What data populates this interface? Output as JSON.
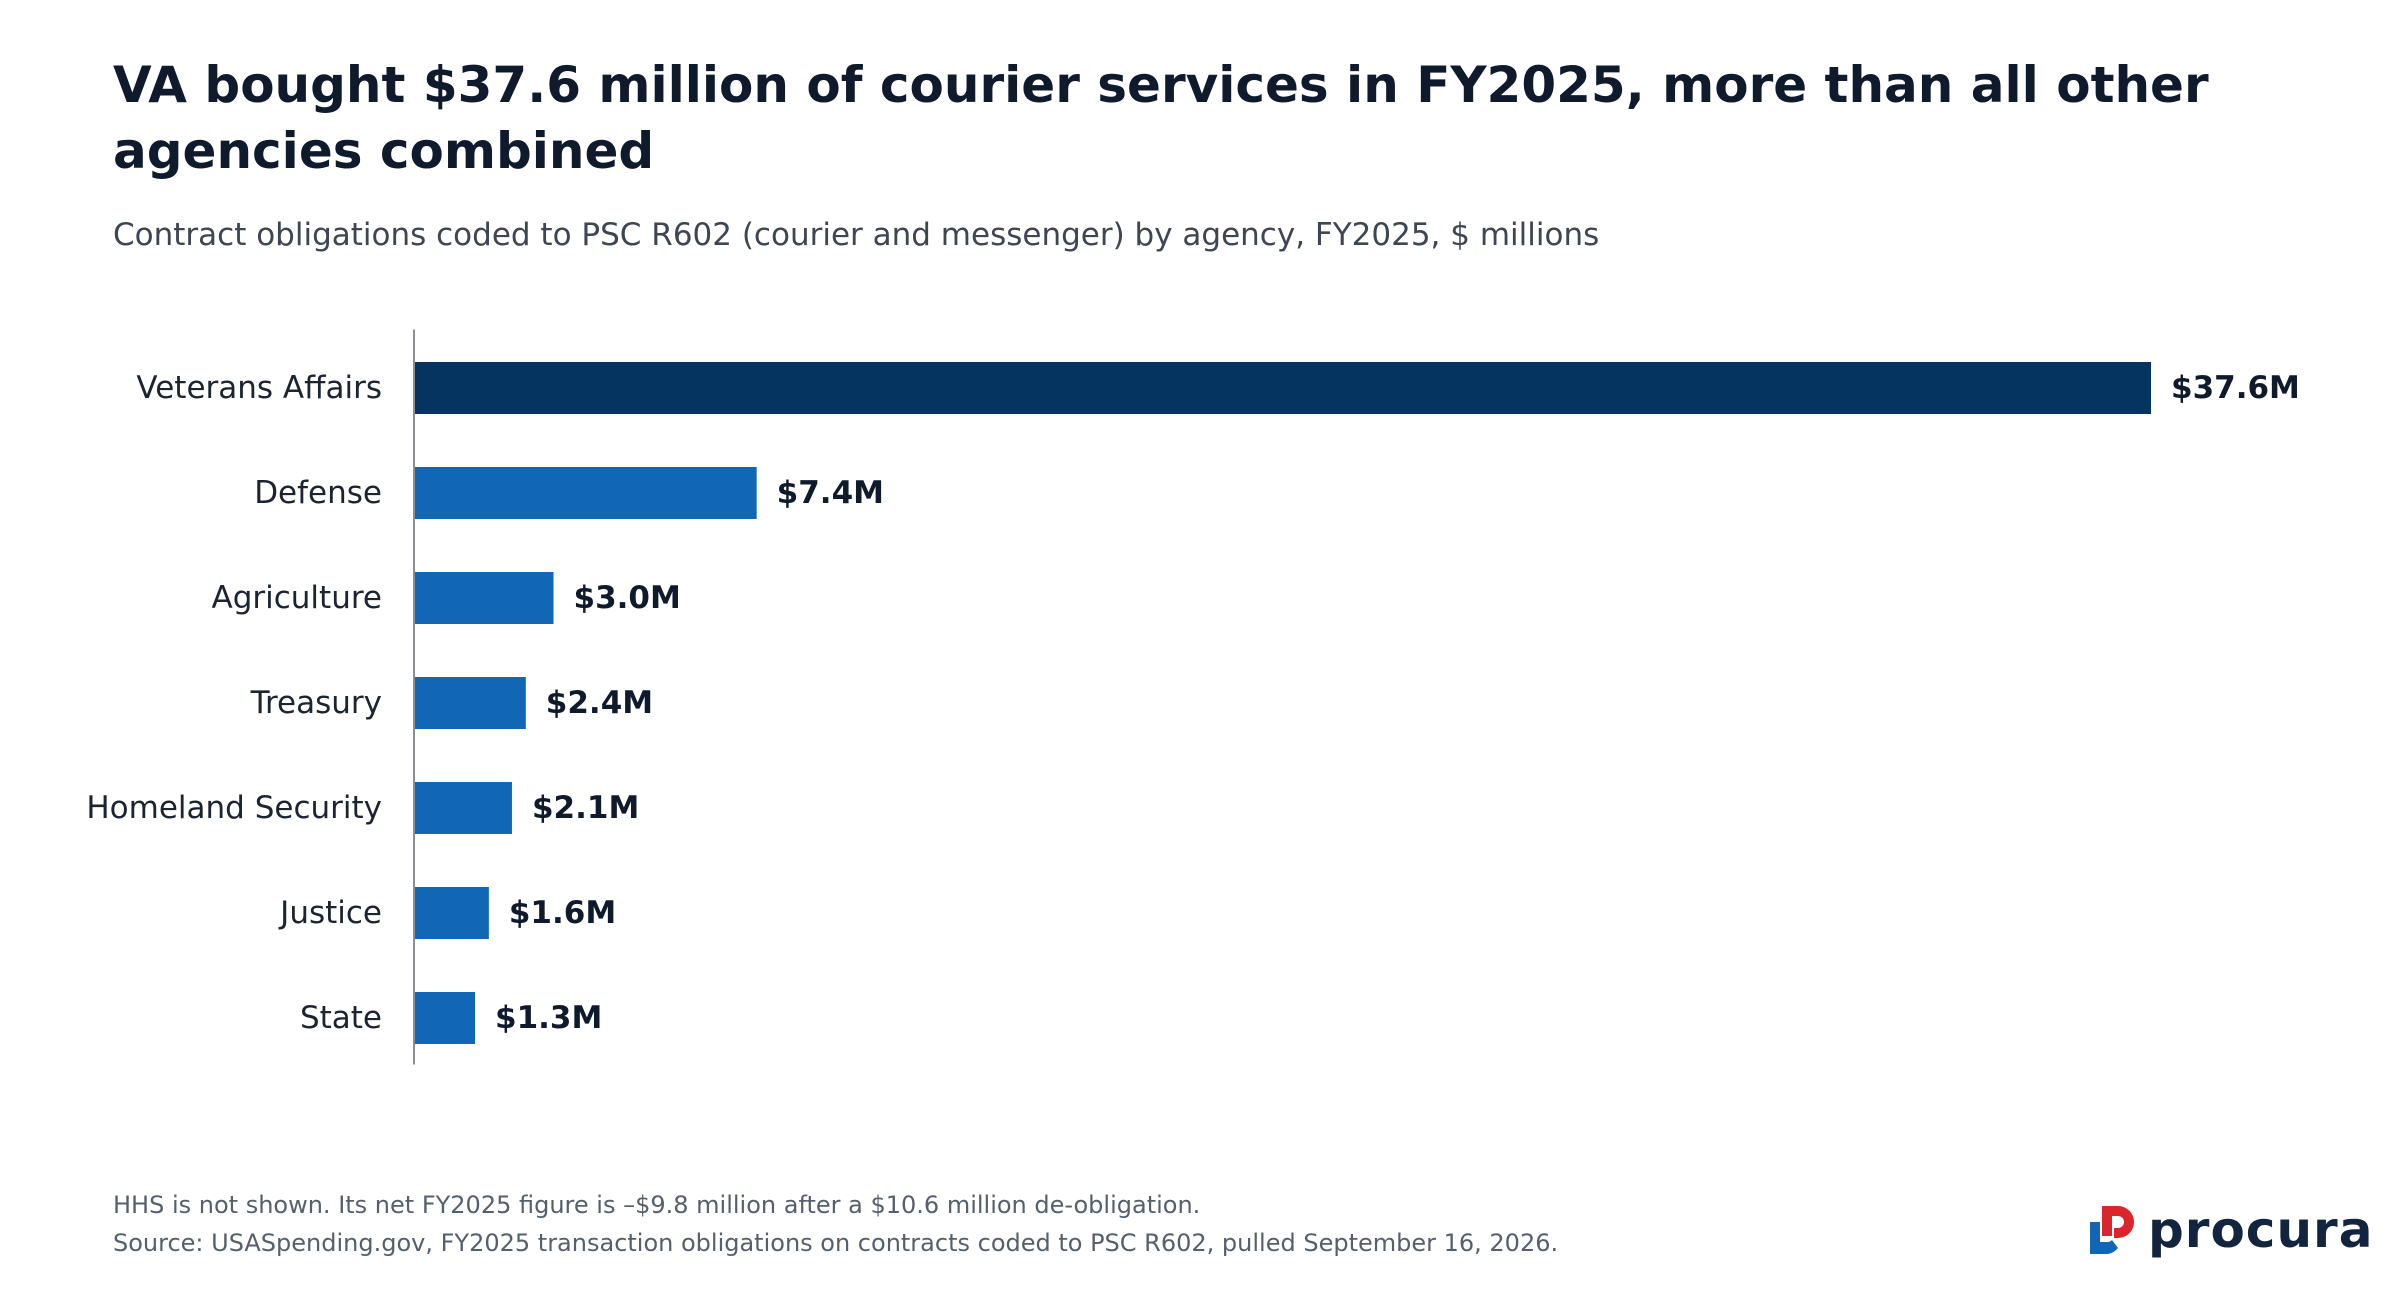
{
  "header": {
    "title": "VA bought $37.6 million of courier services in FY2025, more than all other agencies combined",
    "subtitle": "Contract obligations coded to PSC R602 (courier and messenger) by agency, FY2025, $ millions"
  },
  "footer": {
    "note": "HHS is not shown. Its net FY2025 figure is –$9.8 million after a $10.6 million de-obligation.",
    "source": "Source: USASpending.gov, FY2025 transaction obligations on contracts coded to PSC R602, pulled September 16, 2026.",
    "brand": "procura"
  },
  "colors": {
    "highlight": "#04345f",
    "bar": "#1166b5",
    "axis": "#8a8f96",
    "logo_red": "#d9252b",
    "logo_blue": "#1166b5",
    "logo_text": "#13243f"
  },
  "chart_data": {
    "type": "bar",
    "orientation": "horizontal",
    "categories": [
      "Veterans Affairs",
      "Defense",
      "Agriculture",
      "Treasury",
      "Homeland Security",
      "Justice",
      "State"
    ],
    "values": [
      37.6,
      7.4,
      3.0,
      2.4,
      2.1,
      1.6,
      1.3
    ],
    "data_labels": [
      "$37.6M",
      "$7.4M",
      "$3.0M",
      "$2.4M",
      "$2.1M",
      "$1.6M",
      "$1.3M"
    ],
    "highlight_category": "Veterans Affairs",
    "xlim": [
      0,
      37.6
    ],
    "grid": false,
    "xlabel": "",
    "ylabel": ""
  }
}
